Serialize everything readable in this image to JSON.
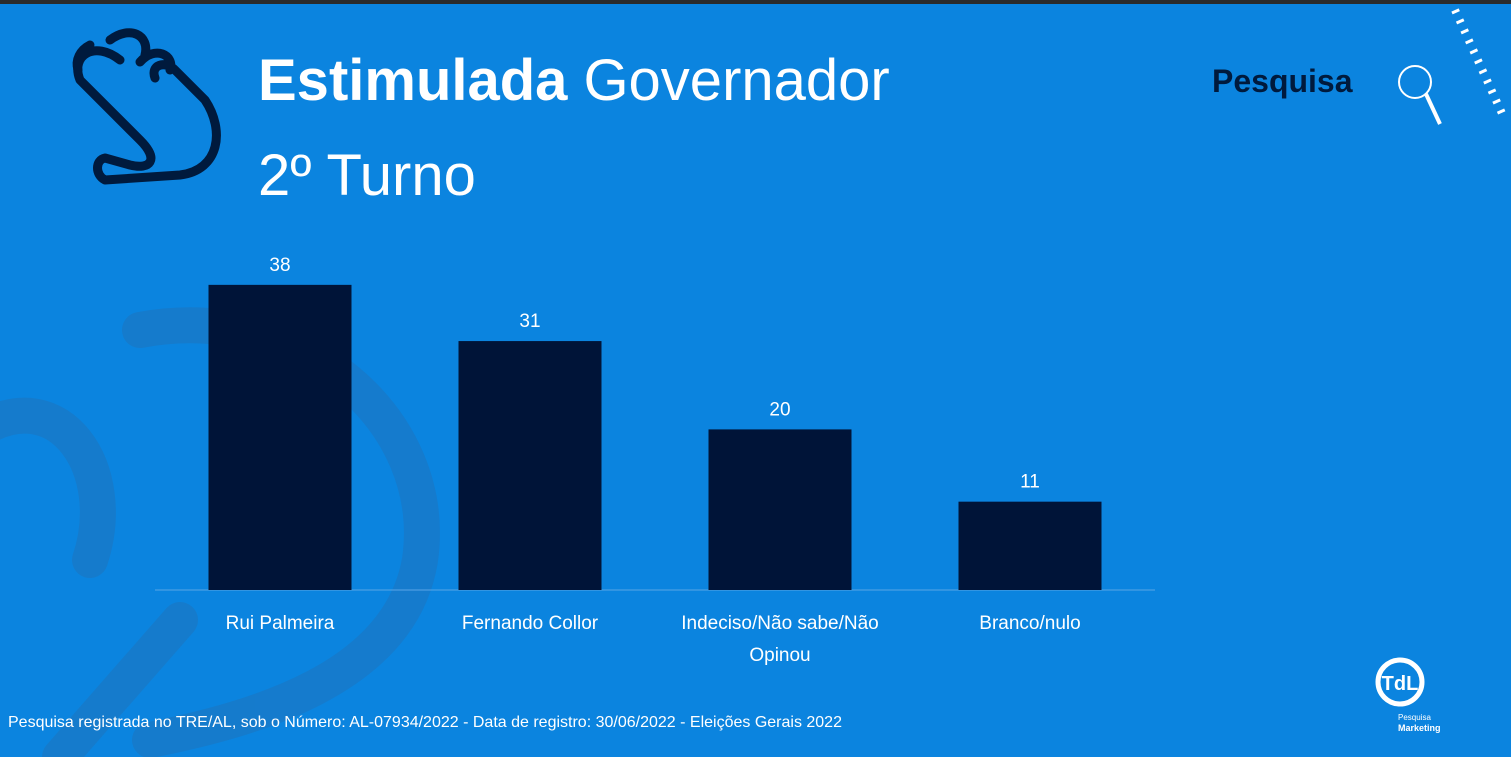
{
  "chart_data": {
    "type": "bar",
    "title": {
      "bold": "Estimulada",
      "regular": "Governador",
      "line2": "2º Turno"
    },
    "categories": [
      "Rui Palmeira",
      "Fernando Collor",
      "Indeciso/Não sabe/Não Opinou",
      "Branco/nulo"
    ],
    "values": [
      38,
      31,
      20,
      11
    ],
    "color": "#001438",
    "note": "Pesquisa registrada no TRE/AL, sob o Número: AL-07934/2022 - Data de registro: 30/06/2022 - Eleições Gerais 2022"
  },
  "logos": {
    "pesquisa": "Pesquisa",
    "tdl": "TdL",
    "tdl_sub1": "Pesquisa",
    "tdl_sub2": "Marketing"
  }
}
